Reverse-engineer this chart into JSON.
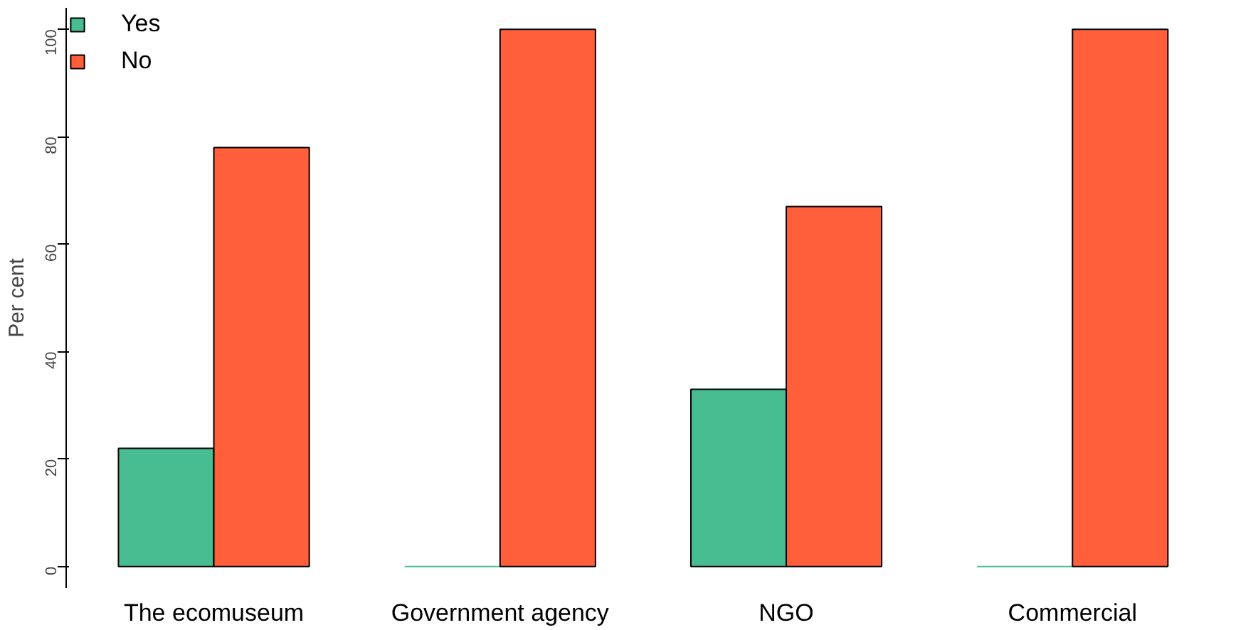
{
  "chart_data": {
    "type": "bar",
    "categories": [
      "The ecomuseum",
      "Government agency",
      "NGO",
      "Commercial"
    ],
    "ylabel": "Per cent",
    "series": [
      {
        "name": "Yes",
        "color": "#48bd92",
        "values": [
          22,
          0,
          33,
          0
        ]
      },
      {
        "name": "No",
        "color": "#ff5f3a",
        "values": [
          78,
          100,
          67,
          100
        ]
      }
    ],
    "ylim": [
      -4,
      104
    ],
    "yticks": [
      0,
      20,
      40,
      60,
      80,
      100
    ],
    "grid": false,
    "legend": "top left"
  }
}
